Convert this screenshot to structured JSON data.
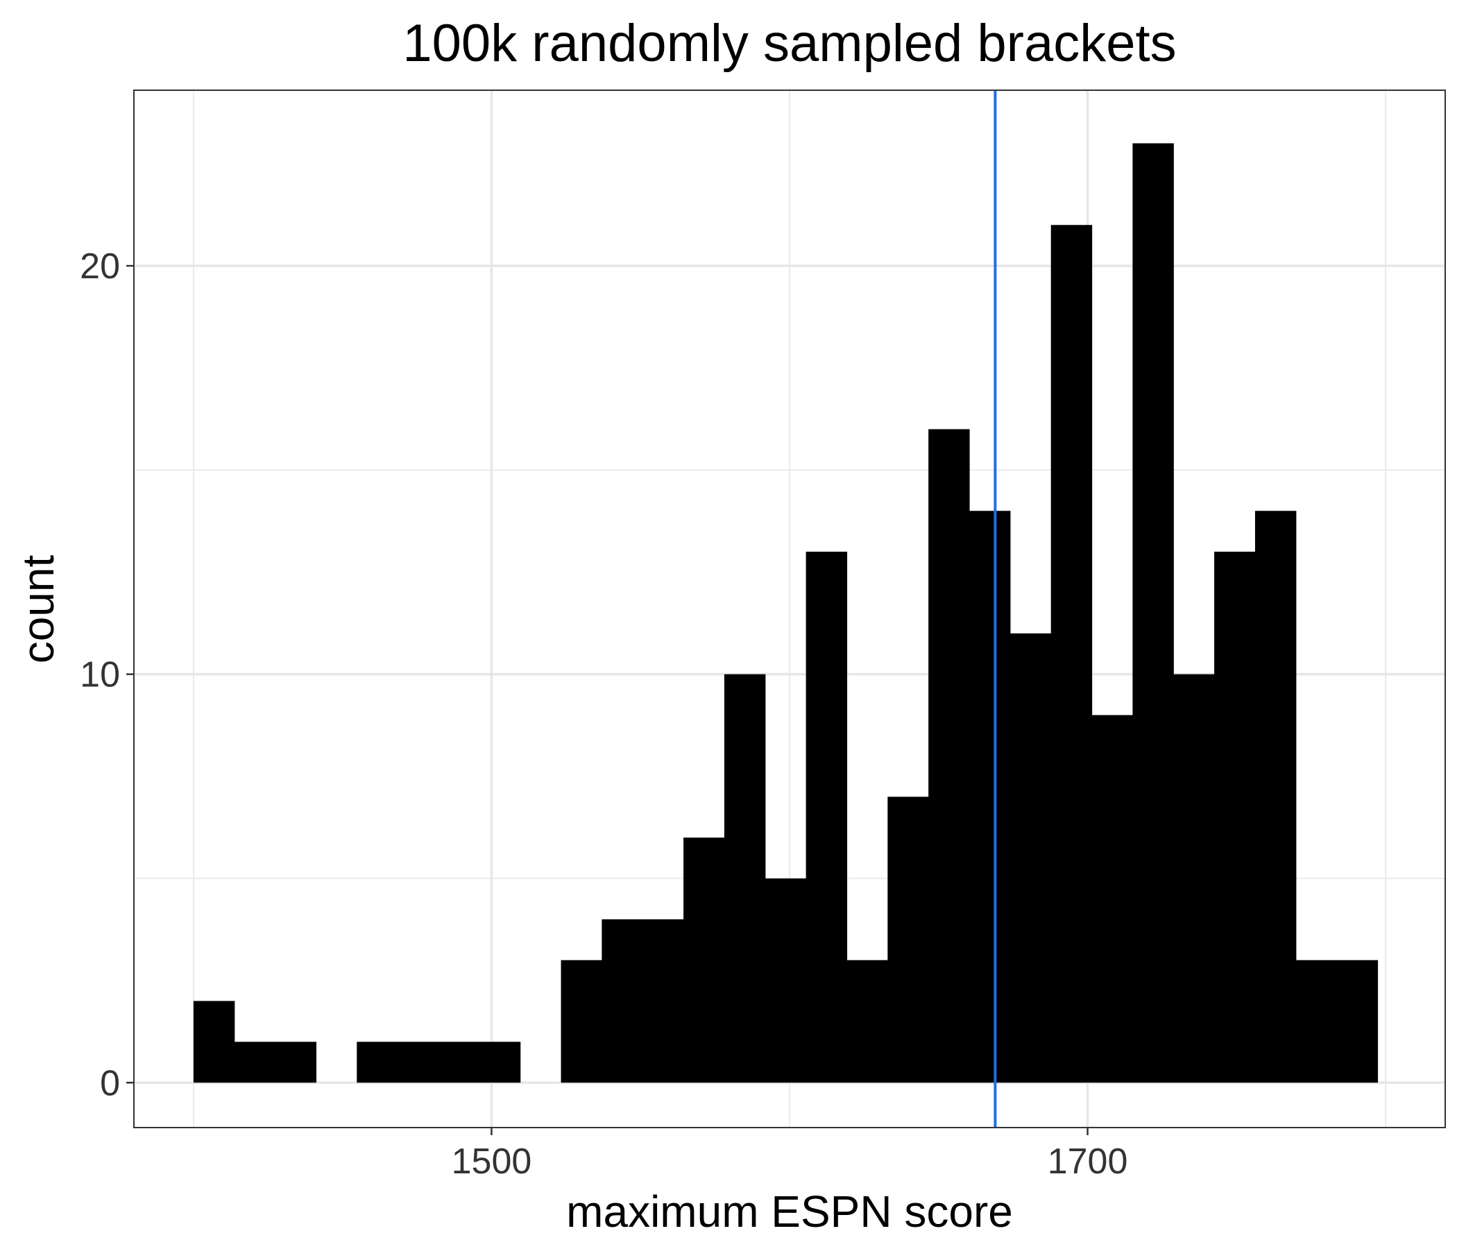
{
  "chart_data": {
    "type": "bar",
    "title": "100k randomly sampled brackets",
    "xlabel": "maximum ESPN score",
    "ylabel": "count",
    "bin_width": 13.7,
    "bin_starts": [
      1400,
      1413.7,
      1427.4,
      1441.1,
      1454.8,
      1468.5,
      1482.2,
      1495.9,
      1509.6,
      1523.3,
      1537.0,
      1550.7,
      1564.4,
      1578.1,
      1591.8,
      1605.5,
      1619.2,
      1632.9,
      1646.6,
      1660.3,
      1674.0,
      1687.7,
      1701.4,
      1715.1,
      1728.8,
      1742.5,
      1756.2,
      1769.9,
      1783.6
    ],
    "values": [
      2,
      1,
      1,
      0,
      1,
      1,
      1,
      1,
      0,
      3,
      4,
      4,
      6,
      10,
      5,
      13,
      3,
      7,
      16,
      14,
      11,
      21,
      9,
      23,
      10,
      13,
      14,
      3,
      3
    ],
    "vline": {
      "x": 1669,
      "color": "#1f6fe5"
    },
    "xlim": [
      1380,
      1820
    ],
    "ylim": [
      -1.1,
      24.3
    ],
    "x_ticks": [
      1500,
      1700
    ],
    "x_tick_labels": [
      "1500",
      "1700"
    ],
    "x_minor_ticks": [
      1400,
      1600,
      1800
    ],
    "y_ticks": [
      0,
      10,
      20
    ],
    "y_tick_labels": [
      "0",
      "10",
      "20"
    ],
    "y_minor_ticks": [
      5,
      15
    ],
    "grid": true,
    "theme": "bw",
    "bar_color": "#000000",
    "legend": "none"
  }
}
